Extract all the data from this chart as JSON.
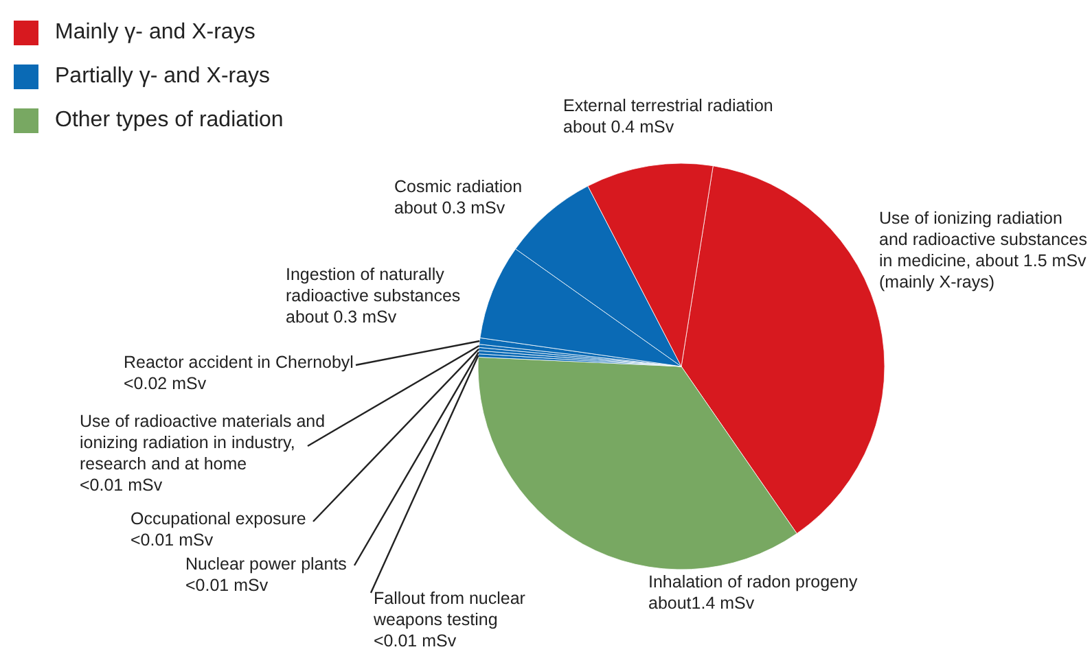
{
  "chart_data": {
    "type": "pie",
    "categories": [
      "Use of ionizing radiation\nand radioactive substances\nin medicine, about 1.5 mSv\n(mainly X-rays)",
      "Inhalation of radon progeny\nabout1.4 mSv",
      "Fallout from nuclear\nweapons testing\n<0.01 mSv",
      "Nuclear power plants\n<0.01 mSv",
      "Occupational exposure\n<0.01 mSv",
      "Use of radioactive materials and\nionizing radiation in industry,\nresearch and at home\n<0.01 mSv",
      "Reactor accident in Chernobyl\n<0.02 mSv",
      "Ingestion of naturally\nradioactive substances\nabout 0.3 mSv",
      "Cosmic radiation\nabout 0.3 mSv",
      "External terrestrial radiation\nabout 0.4 mSv"
    ],
    "values": [
      1.5,
      1.4,
      0.01,
      0.01,
      0.01,
      0.01,
      0.02,
      0.3,
      0.3,
      0.4
    ],
    "colors": [
      "#d7191f",
      "#78a862",
      "#0a6ab5",
      "#0a6ab5",
      "#0a6ab5",
      "#0a6ab5",
      "#0a6ab5",
      "#0a6ab5",
      "#0a6ab5",
      "#d7191f"
    ],
    "annotations": [
      "Mainly γ- and X-rays",
      "Partially γ- and X-rays",
      "Other types of radiation"
    ]
  }
}
